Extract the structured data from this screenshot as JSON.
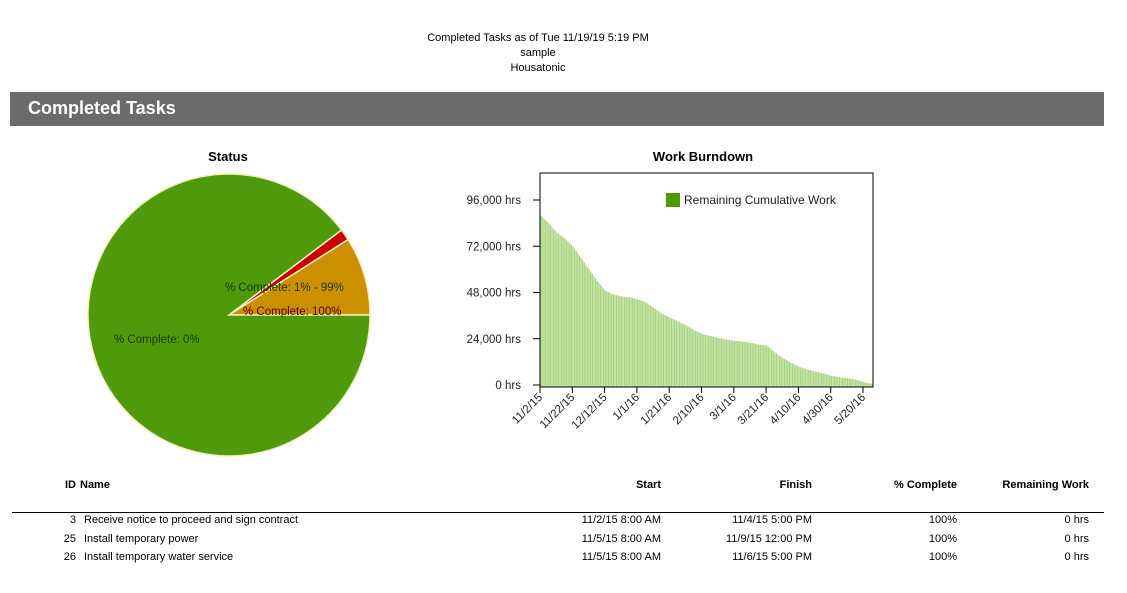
{
  "report": {
    "line1": "Completed Tasks  as of Tue 11/19/19 5:19 PM",
    "line2": "sample",
    "line3": "Housatonic"
  },
  "section_title": "Completed Tasks",
  "chart_data": [
    {
      "type": "pie",
      "title": "Status",
      "slices": [
        {
          "label": "% Complete: 1% - 99%",
          "value": 9,
          "color": "#cc8f00"
        },
        {
          "label": "% Complete: 100%",
          "value": 1.3,
          "color": "#cc0000"
        },
        {
          "label": "% Complete: 0%",
          "value": 89.7,
          "color": "#4e9a0a"
        }
      ]
    },
    {
      "type": "bar",
      "title": "Work Burndown",
      "legend": "Remaining Cumulative Work",
      "legend_position": "top-right",
      "color": "#4e9a0a",
      "bar_color": "#a8d57e",
      "ylim": [
        0,
        108000
      ],
      "yticks": [
        0,
        24000,
        48000,
        72000,
        96000
      ],
      "ytick_labels": [
        "0 hrs",
        "24,000 hrs",
        "48,000 hrs",
        "72,000 hrs",
        "96,000 hrs"
      ],
      "xtick_labels": [
        "11/2/15",
        "11/22/15",
        "12/12/15",
        "1/1/16",
        "1/21/16",
        "2/10/16",
        "3/1/16",
        "3/21/16",
        "4/10/16",
        "4/30/16",
        "5/20/16"
      ],
      "x": [
        "11/2/15",
        "11/7/15",
        "11/12/15",
        "11/17/15",
        "11/22/15",
        "11/27/15",
        "12/2/15",
        "12/7/15",
        "12/12/15",
        "12/17/15",
        "12/22/15",
        "12/27/15",
        "1/1/16",
        "1/6/16",
        "1/11/16",
        "1/16/16",
        "1/21/16",
        "1/26/16",
        "1/31/16",
        "2/5/16",
        "2/10/16",
        "2/15/16",
        "2/20/16",
        "2/25/16",
        "3/1/16",
        "3/6/16",
        "3/11/16",
        "3/16/16",
        "3/21/16",
        "3/26/16",
        "3/31/16",
        "4/5/16",
        "4/10/16",
        "4/15/16",
        "4/20/16",
        "4/25/16",
        "4/30/16",
        "5/5/16",
        "5/10/16",
        "5/15/16",
        "5/20/16",
        "5/25/16"
      ],
      "values": [
        88000,
        84000,
        79000,
        76000,
        72000,
        66000,
        60000,
        54000,
        49000,
        47000,
        46000,
        45500,
        44500,
        43000,
        40000,
        37000,
        35000,
        33000,
        31000,
        28500,
        26500,
        25500,
        24500,
        23500,
        23000,
        22500,
        22000,
        21000,
        20500,
        17000,
        14000,
        11500,
        9500,
        8000,
        7000,
        6000,
        4800,
        4000,
        3500,
        2800,
        1500,
        700
      ]
    }
  ],
  "table": {
    "headers": {
      "id": "ID",
      "name": "Name",
      "start": "Start",
      "finish": "Finish",
      "pct": "% Complete",
      "remaining": "Remaining Work"
    },
    "rows": [
      {
        "id": "3",
        "name": "Receive notice to proceed and sign contract",
        "start": "11/2/15 8:00 AM",
        "finish": "11/4/15 5:00 PM",
        "pct": "100%",
        "remaining": "0 hrs"
      },
      {
        "id": "25",
        "name": "Install temporary power",
        "start": "11/5/15 8:00 AM",
        "finish": "11/9/15 12:00 PM",
        "pct": "100%",
        "remaining": "0 hrs"
      },
      {
        "id": "26",
        "name": "Install temporary water service",
        "start": "11/5/15 8:00 AM",
        "finish": "11/6/15 5:00 PM",
        "pct": "100%",
        "remaining": "0 hrs"
      }
    ]
  }
}
